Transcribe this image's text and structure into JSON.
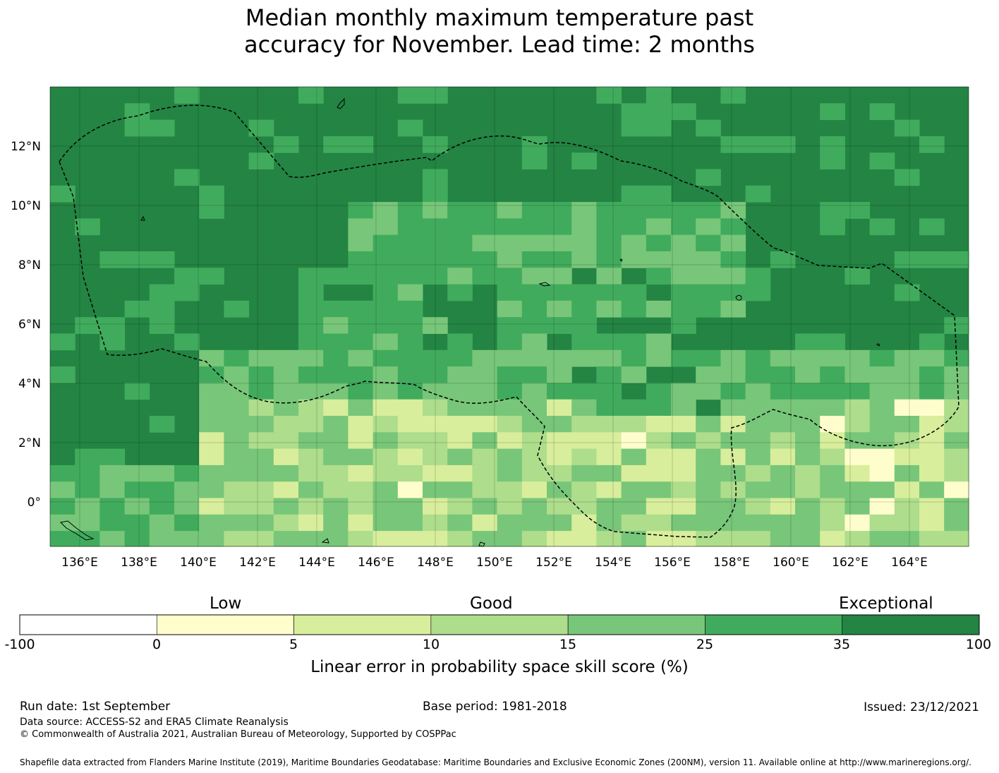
{
  "title_line1": "Median monthly maximum temperature past",
  "title_line2": "accuracy for November. Lead time: 2 months",
  "map": {
    "lon_range": [
      135,
      166
    ],
    "lat_range": [
      -1.5,
      14
    ],
    "lon_ticks": [
      "136°E",
      "138°E",
      "140°E",
      "142°E",
      "144°E",
      "146°E",
      "148°E",
      "150°E",
      "152°E",
      "154°E",
      "156°E",
      "158°E",
      "160°E",
      "162°E",
      "164°E"
    ],
    "lat_ticks": [
      "12°N",
      "10°N",
      "8°N",
      "6°N",
      "4°N",
      "2°N",
      "0°"
    ],
    "gridlines": true
  },
  "colorbar": {
    "categories": [
      "Low",
      "Good",
      "Exceptional"
    ],
    "ticks": [
      "-100",
      "0",
      "5",
      "10",
      "15",
      "25",
      "35",
      "100"
    ],
    "colors": [
      "#ffffff",
      "#fefecd",
      "#d8ee9c",
      "#aedd8c",
      "#78c679",
      "#41ab5d",
      "#238443"
    ],
    "label": "Linear error in probability space skill score (%)"
  },
  "footer": {
    "run_date": "Run date: 1st September",
    "base_period": "Base period: 1981-2018",
    "issued": "Issued: 23/12/2021",
    "data_source": "Data source: ACCESS-S2 and ERA5 Climate Reanalysis",
    "copyright": "© Commonwealth of Australia 2021, Australian Bureau of Meteorology, Supported by COSPPac",
    "shapefile": "Shapefile data extracted from Flanders Marine Institute (2019), Maritime Boundaries Geodatabase: Maritime Boundaries and Exclusive Economic Zones (200NM), version 11. Available online at http://www.marineregions.org/."
  }
}
